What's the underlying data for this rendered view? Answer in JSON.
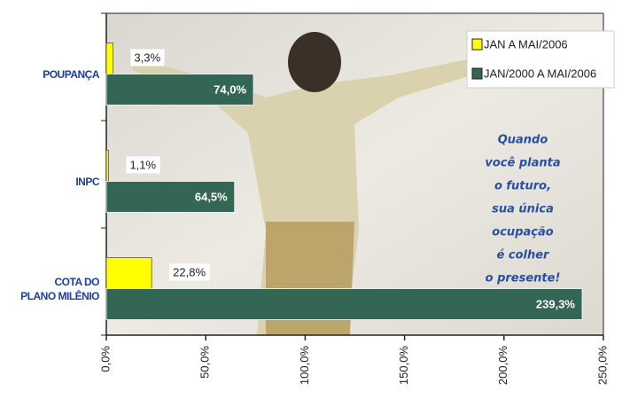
{
  "chart_data": {
    "type": "hbar",
    "categories": [
      "POUPANÇA",
      "INPC",
      "COTA DO\nPLANO MILÊNIO"
    ],
    "series": [
      {
        "name": "JAN A MAI/2006",
        "color": "#ffff00",
        "values": [
          3.3,
          1.1,
          22.8
        ],
        "value_labels": [
          "3,3%",
          "1,1%",
          "22,8%"
        ]
      },
      {
        "name": "JAN/2000 A MAI/2006",
        "color": "#336655",
        "values": [
          74.0,
          64.5,
          239.3
        ],
        "value_labels": [
          "74,0%",
          "64,5%",
          "239,3%"
        ]
      }
    ],
    "xlim": [
      0,
      250
    ],
    "xticks": [
      {
        "value": 0,
        "label": "0,0%"
      },
      {
        "value": 50,
        "label": "50,0%"
      },
      {
        "value": 100,
        "label": "100,0%"
      },
      {
        "value": 150,
        "label": "150,0%"
      },
      {
        "value": 200,
        "label": "200,0%"
      },
      {
        "value": 250,
        "label": "250,0%"
      }
    ],
    "legend": "top-right",
    "annotation": [
      "Quando",
      "você planta",
      "o futuro,",
      "sua única",
      "ocupação",
      "é colher",
      "o presente!"
    ]
  }
}
